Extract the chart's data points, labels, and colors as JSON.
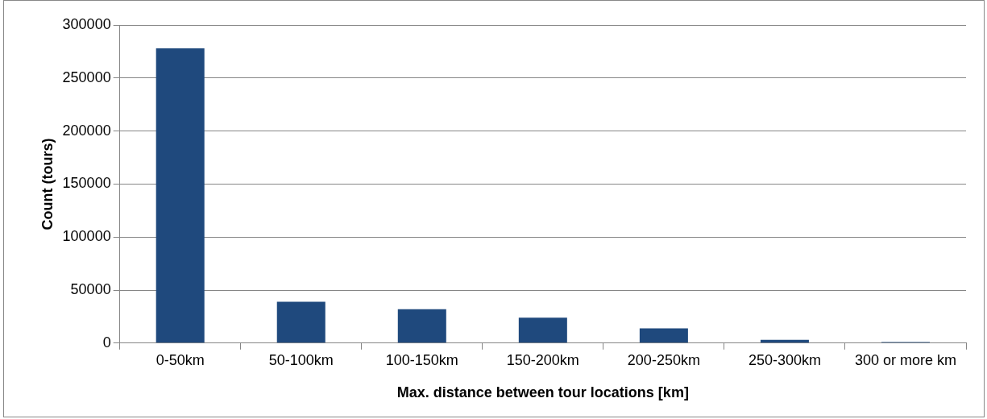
{
  "chart_data": {
    "type": "bar",
    "categories": [
      "0-50km",
      "50-100km",
      "100-150km",
      "150-200km",
      "200-250km",
      "250-300km",
      "300 or more km"
    ],
    "values": [
      278000,
      39000,
      32000,
      24000,
      14000,
      3000,
      1000
    ],
    "color": "#1f497d",
    "xlabel": "Max. distance between tour locations [km]",
    "ylabel": "Count (tours)",
    "ylim": [
      0,
      300000
    ],
    "yticks": [
      0,
      50000,
      100000,
      150000,
      200000,
      250000,
      300000
    ],
    "grid": "y",
    "legend": false
  }
}
